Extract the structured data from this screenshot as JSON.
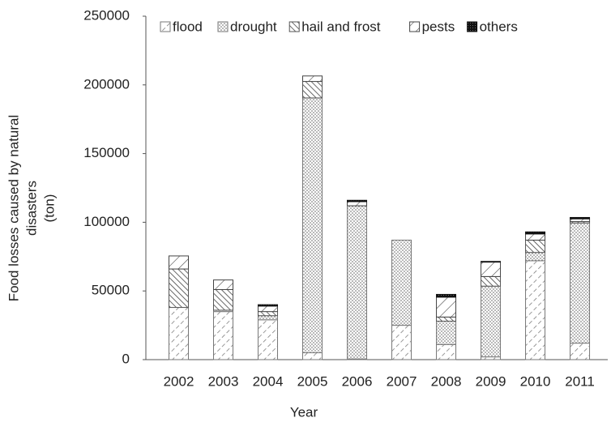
{
  "chart_data": {
    "type": "stacked_bar",
    "x_label": "Year",
    "y_label": [
      "Food losses caused by natural",
      "disasters",
      "(ton)"
    ],
    "categories": [
      "2002",
      "2003",
      "2004",
      "2005",
      "2006",
      "2007",
      "2008",
      "2009",
      "2010",
      "2011"
    ],
    "series": [
      {
        "name": "flood",
        "color": "#777777",
        "values": [
          38000,
          35000,
          29000,
          5000,
          500,
          25000,
          11000,
          2000,
          72000,
          12000
        ]
      },
      {
        "name": "drought",
        "color": "#777777",
        "values": [
          0,
          1000,
          3000,
          185500,
          111500,
          62000,
          17000,
          51500,
          6000,
          87500
        ]
      },
      {
        "name": "hail and frost",
        "color": "#555555",
        "values": [
          28000,
          15000,
          3000,
          12000,
          0,
          0,
          3000,
          7000,
          9000,
          1000
        ]
      },
      {
        "name": "pests",
        "color": "#444444",
        "values": [
          9500,
          7000,
          4000,
          4000,
          3000,
          0,
          14500,
          10500,
          4500,
          2000
        ]
      },
      {
        "name": "others",
        "color": "#111111",
        "values": [
          0,
          0,
          1000,
          0,
          1000,
          0,
          2000,
          500,
          1500,
          1000
        ]
      }
    ],
    "ylim": [
      0,
      250000
    ],
    "yticks": [
      0,
      50000,
      100000,
      150000,
      200000,
      250000
    ],
    "legend": "top"
  }
}
